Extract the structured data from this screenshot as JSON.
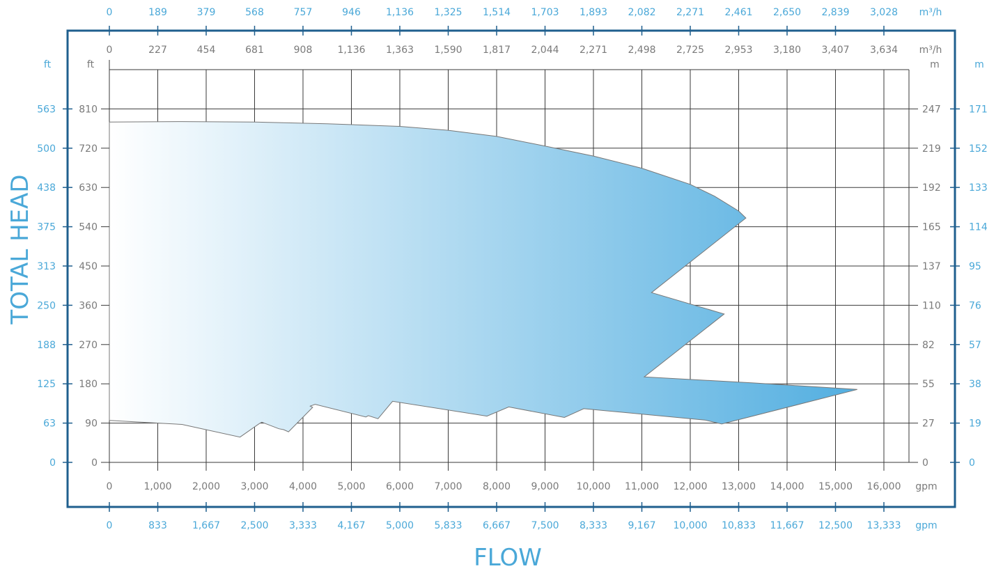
{
  "colors": {
    "frame": "#1f5f8e",
    "label_blue": "#4aa8d8",
    "label_gray": "#7a7a7a",
    "grid": "#3a3a3a",
    "fill_start": "#ffffff",
    "fill_end": "#52aee0",
    "outline": "#777777"
  },
  "chart_data": {
    "type": "area",
    "title": "",
    "xlabel": "FLOW",
    "ylabel": "TOTAL HEAD",
    "xlim": [
      0,
      16500
    ],
    "ylim": [
      0,
      900
    ],
    "grid": true,
    "legend": "none",
    "axes": {
      "x_outer_top": {
        "unit": "m³/h",
        "ticks": [
          "0",
          "189",
          "379",
          "568",
          "757",
          "946",
          "1,136",
          "1,325",
          "1,514",
          "1,703",
          "1,893",
          "2,082",
          "2,271",
          "2,461",
          "2,650",
          "2,839",
          "3,028"
        ]
      },
      "x_inner_top": {
        "unit": "m³/h",
        "ticks": [
          "0",
          "227",
          "454",
          "681",
          "908",
          "1,136",
          "1,363",
          "1,590",
          "1,817",
          "2,044",
          "2,271",
          "2,498",
          "2,725",
          "2,953",
          "3,180",
          "3,407",
          "3,634"
        ]
      },
      "x_inner_bottom": {
        "unit": "gpm",
        "ticks": [
          "0",
          "1,000",
          "2,000",
          "3,000",
          "4,000",
          "5,000",
          "6,000",
          "7,000",
          "8,000",
          "9,000",
          "10,000",
          "11,000",
          "12,000",
          "13,000",
          "14,000",
          "15,000",
          "16,000"
        ]
      },
      "x_outer_bottom": {
        "unit": "gpm",
        "ticks": [
          "0",
          "833",
          "1,667",
          "2,500",
          "3,333",
          "4,167",
          "5,000",
          "5,833",
          "6,667",
          "7,500",
          "8,333",
          "9,167",
          "10,000",
          "10,833",
          "11,667",
          "12,500",
          "13,333"
        ]
      },
      "y_outer_left": {
        "unit": "ft",
        "ticks": [
          "0",
          "63",
          "125",
          "188",
          "250",
          "313",
          "375",
          "438",
          "500",
          "563"
        ]
      },
      "y_inner_left": {
        "unit": "ft",
        "ticks": [
          "0",
          "90",
          "180",
          "270",
          "360",
          "450",
          "540",
          "630",
          "720",
          "810"
        ]
      },
      "y_inner_right": {
        "unit": "m",
        "ticks": [
          "0",
          "27",
          "55",
          "82",
          "110",
          "137",
          "165",
          "192",
          "219",
          "247"
        ]
      },
      "y_outer_right": {
        "unit": "m",
        "ticks": [
          "0",
          "19",
          "38",
          "57",
          "76",
          "95",
          "114",
          "133",
          "152",
          "171"
        ]
      }
    },
    "x_ticks_gpm": [
      0,
      1000,
      2000,
      3000,
      4000,
      5000,
      6000,
      7000,
      8000,
      9000,
      10000,
      11000,
      12000,
      13000,
      14000,
      15000,
      16000
    ],
    "y_ticks_ft": [
      0,
      90,
      180,
      270,
      360,
      450,
      540,
      630,
      720,
      810
    ],
    "series": [
      {
        "type": "polygon",
        "x": [
          0,
          1500,
          3000,
          4500,
          6000,
          7000,
          8000,
          9000,
          10000,
          11000,
          12000,
          12500,
          13000,
          13150,
          11200,
          12700,
          11050,
          13300,
          15450,
          12650,
          12300,
          9800,
          9400,
          8250,
          7800,
          5850,
          5550,
          5350,
          5300,
          4250,
          4150,
          4200,
          3700,
          3600,
          3500,
          3150,
          3100,
          2700,
          1500,
          0
        ],
        "y": [
          780,
          781,
          780,
          776,
          770,
          761,
          747,
          725,
          702,
          674,
          637,
          610,
          576,
          560,
          389,
          340,
          196,
          182,
          167,
          88,
          97,
          123,
          103,
          127,
          106,
          140,
          100,
          107,
          104,
          133,
          129,
          126,
          70,
          75,
          77,
          92,
          89,
          58,
          87,
          96
        ]
      }
    ]
  }
}
